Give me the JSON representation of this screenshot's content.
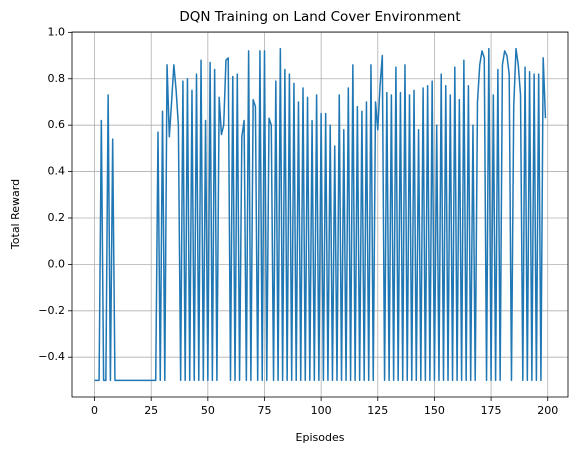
{
  "chart_data": {
    "type": "line",
    "title": "DQN Training on Land Cover Environment",
    "x_label": "Episodes",
    "y_label": "Total Reward",
    "x": [
      0,
      1,
      2,
      3,
      4,
      5,
      6,
      7,
      8,
      9,
      10,
      11,
      12,
      13,
      14,
      15,
      16,
      17,
      18,
      19,
      20,
      21,
      22,
      23,
      24,
      25,
      26,
      27,
      28,
      29,
      30,
      31,
      32,
      33,
      34,
      35,
      36,
      37,
      38,
      39,
      40,
      41,
      42,
      43,
      44,
      45,
      46,
      47,
      48,
      49,
      50,
      51,
      52,
      53,
      54,
      55,
      56,
      57,
      58,
      59,
      60,
      61,
      62,
      63,
      64,
      65,
      66,
      67,
      68,
      69,
      70,
      71,
      72,
      73,
      74,
      75,
      76,
      77,
      78,
      79,
      80,
      81,
      82,
      83,
      84,
      85,
      86,
      87,
      88,
      89,
      90,
      91,
      92,
      93,
      94,
      95,
      96,
      97,
      98,
      99,
      100,
      101,
      102,
      103,
      104,
      105,
      106,
      107,
      108,
      109,
      110,
      111,
      112,
      113,
      114,
      115,
      116,
      117,
      118,
      119,
      120,
      121,
      122,
      123,
      124,
      125,
      126,
      127,
      128,
      129,
      130,
      131,
      132,
      133,
      134,
      135,
      136,
      137,
      138,
      139,
      140,
      141,
      142,
      143,
      144,
      145,
      146,
      147,
      148,
      149,
      150,
      151,
      152,
      153,
      154,
      155,
      156,
      157,
      158,
      159,
      160,
      161,
      162,
      163,
      164,
      165,
      166,
      167,
      168,
      169,
      170,
      171,
      172,
      173,
      174,
      175,
      176,
      177,
      178,
      179,
      180,
      181,
      182,
      183,
      184,
      185,
      186,
      187,
      188,
      189,
      190,
      191,
      192,
      193,
      194,
      195,
      196,
      197,
      198,
      199
    ],
    "series": [
      {
        "name": "Total Reward",
        "color": "#1f77b4",
        "values": [
          -0.5,
          -0.5,
          -0.5,
          0.62,
          -0.5,
          -0.5,
          0.73,
          -0.5,
          0.54,
          -0.5,
          -0.5,
          -0.5,
          -0.5,
          -0.5,
          -0.5,
          -0.5,
          -0.5,
          -0.5,
          -0.5,
          -0.5,
          -0.5,
          -0.5,
          -0.5,
          -0.5,
          -0.5,
          -0.5,
          -0.5,
          -0.5,
          0.57,
          -0.5,
          0.66,
          -0.5,
          0.86,
          0.55,
          0.7,
          0.86,
          0.75,
          0.6,
          -0.5,
          0.79,
          -0.5,
          0.8,
          -0.5,
          0.75,
          -0.5,
          0.82,
          -0.5,
          0.88,
          -0.5,
          0.62,
          -0.5,
          0.87,
          -0.5,
          0.84,
          -0.5,
          0.72,
          0.56,
          0.6,
          0.88,
          0.89,
          -0.5,
          0.81,
          -0.5,
          0.82,
          -0.5,
          0.55,
          0.62,
          -0.5,
          0.92,
          -0.5,
          0.71,
          0.68,
          -0.5,
          0.92,
          -0.5,
          0.92,
          -0.5,
          0.63,
          0.6,
          -0.5,
          0.79,
          -0.5,
          0.93,
          -0.5,
          0.84,
          -0.5,
          0.82,
          -0.5,
          0.78,
          -0.5,
          0.7,
          -0.5,
          0.76,
          -0.5,
          0.72,
          -0.5,
          0.62,
          -0.5,
          0.73,
          -0.5,
          0.65,
          -0.5,
          0.65,
          -0.5,
          0.6,
          -0.5,
          0.51,
          -0.5,
          0.73,
          -0.5,
          0.58,
          -0.5,
          0.76,
          -0.5,
          0.86,
          -0.5,
          0.68,
          -0.5,
          0.66,
          -0.5,
          0.7,
          -0.5,
          0.86,
          -0.5,
          0.7,
          0.58,
          0.77,
          0.9,
          -0.5,
          0.74,
          -0.5,
          0.73,
          -0.5,
          0.85,
          -0.5,
          0.74,
          -0.5,
          0.86,
          -0.5,
          0.73,
          -0.5,
          0.75,
          -0.5,
          0.58,
          -0.5,
          0.76,
          -0.5,
          0.77,
          -0.5,
          0.79,
          -0.5,
          0.6,
          -0.5,
          0.82,
          -0.5,
          0.77,
          -0.5,
          0.73,
          -0.5,
          0.85,
          -0.5,
          0.71,
          -0.5,
          0.88,
          -0.5,
          0.77,
          -0.5,
          0.6,
          -0.5,
          0.7,
          0.86,
          0.92,
          0.89,
          -0.5,
          0.93,
          -0.5,
          0.73,
          -0.5,
          0.84,
          -0.5,
          0.86,
          0.92,
          0.9,
          0.82,
          -0.5,
          0.68,
          0.93,
          0.86,
          0.73,
          -0.5,
          0.85,
          -0.5,
          0.83,
          -0.5,
          0.82,
          -0.5,
          0.82,
          -0.5,
          0.89,
          0.63
        ]
      }
    ],
    "xlim": [
      -9.95,
      208.95
    ],
    "ylim": [
      -0.5715,
      1.0015
    ],
    "xticks": [
      0,
      25,
      50,
      75,
      100,
      125,
      150,
      175,
      200
    ],
    "yticks": [
      {
        "value": -0.4,
        "label": "−0.4"
      },
      {
        "value": -0.2,
        "label": "−0.2"
      },
      {
        "value": 0,
        "label": "0.0"
      },
      {
        "value": 0.2,
        "label": "0.2"
      },
      {
        "value": 0.4,
        "label": "0.4"
      },
      {
        "value": 0.6,
        "label": "0.6"
      },
      {
        "value": 0.8,
        "label": "0.8"
      },
      {
        "value": 1,
        "label": "1.0"
      }
    ],
    "grid": true
  }
}
